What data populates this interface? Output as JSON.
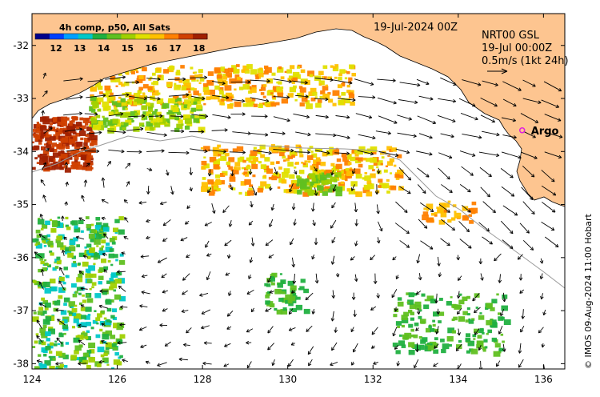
{
  "map": {
    "lon_range": [
      124,
      136.5
    ],
    "lat_range": [
      -38.1,
      -31.4
    ],
    "lon_ticks": [
      "124",
      "126",
      "128",
      "130",
      "132",
      "134",
      "136"
    ],
    "lat_ticks": [
      "-32",
      "-33",
      "-34",
      "-35",
      "-36",
      "-37",
      "-38"
    ],
    "land_color": "#fdc590",
    "ocean_color": "#ffffff"
  },
  "colorbar": {
    "title": "4h comp, p50, All Sats",
    "labels": [
      "12",
      "13",
      "14",
      "15",
      "16",
      "17",
      "18"
    ],
    "colors": [
      "#00008b",
      "#0040ff",
      "#00a0ff",
      "#00c8c8",
      "#20b040",
      "#60c020",
      "#a0d000",
      "#e0e000",
      "#ffc000",
      "#ff8000",
      "#d04000",
      "#a02000"
    ]
  },
  "annotations": {
    "date": "19-Jul-2024 00Z",
    "product": "NRT00 GSL",
    "time": "19-Jul 00:00Z",
    "scale": "0.5m/s (1kt 24h)"
  },
  "marker": {
    "label": "Argo",
    "lon": 135.5,
    "lat": -33.6,
    "color": "#e020e0"
  },
  "credit": "© IMOS 09-Aug-2024 11:00 Hobart"
}
